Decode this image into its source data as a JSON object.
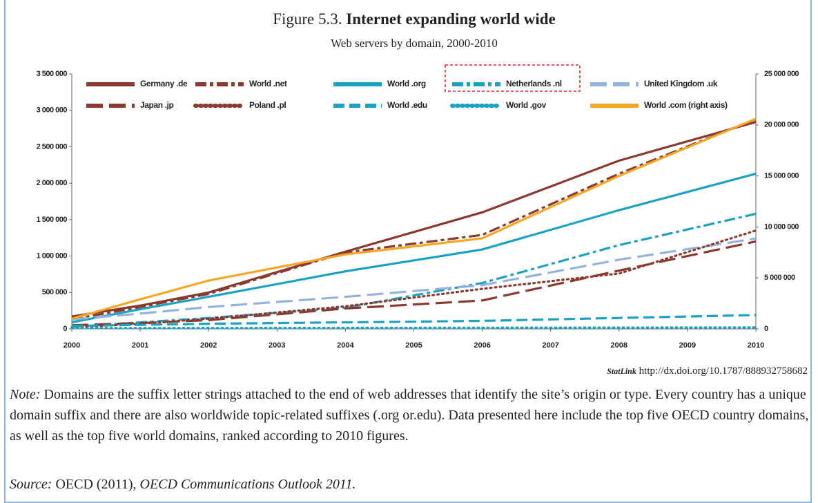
{
  "chart_data": {
    "type": "line",
    "title_prefix": "Figure 5.3.",
    "title": "Internet expanding world wide",
    "subtitle": "Web servers by domain, 2000-2010",
    "x": [
      2000,
      2001,
      2002,
      2004,
      2006,
      2008,
      2010
    ],
    "xlim": [
      2000,
      2010
    ],
    "xticks": [
      2000,
      2001,
      2002,
      2003,
      2004,
      2005,
      2006,
      2007,
      2008,
      2009,
      2010
    ],
    "ylim": [
      0,
      3500000
    ],
    "yticks": [
      0,
      {
        "value": 500000,
        "label": "500 000"
      },
      {
        "value": 1000000,
        "label": "1 000 000"
      },
      {
        "value": 1500000,
        "label": "1 500 000"
      },
      {
        "value": 2000000,
        "label": "2 000 000"
      },
      {
        "value": 2500000,
        "label": "2 500 000"
      },
      {
        "value": 3000000,
        "label": "3 000 000"
      },
      {
        "value": 3500000,
        "label": "3 500 000"
      }
    ],
    "y2lim": [
      0,
      25000000
    ],
    "y2ticks": [
      0,
      {
        "value": 5000000,
        "label": "5 000 000"
      },
      {
        "value": 10000000,
        "label": "10 000 000"
      },
      {
        "value": 15000000,
        "label": "15 000 000"
      },
      {
        "value": 20000000,
        "label": "20 000 000"
      },
      {
        "value": 25000000,
        "label": "25 000 000"
      }
    ],
    "grid": false,
    "series": [
      {
        "name": "Germany .de",
        "color": "#8b3a2f",
        "dash": "solid",
        "values": [
          170000,
          320000,
          500000,
          1060000,
          1600000,
          2310000,
          2840000
        ]
      },
      {
        "name": "World .net",
        "color": "#8b3a2f",
        "dash": "dashdot",
        "values": [
          130000,
          300000,
          480000,
          1050000,
          1290000,
          2130000,
          2880000
        ]
      },
      {
        "name": "World .org",
        "color": "#1aa3c0",
        "dash": "solid",
        "values": [
          90000,
          270000,
          440000,
          790000,
          1090000,
          1630000,
          2130000
        ]
      },
      {
        "name": "Netherlands .nl",
        "color": "#1aa3c0",
        "dash": "dashdot",
        "values": [
          30000,
          90000,
          150000,
          290000,
          630000,
          1150000,
          1580000
        ]
      },
      {
        "name": "United Kingdom .uk",
        "color": "#94b3dc",
        "dash": "longdash",
        "values": [
          130000,
          210000,
          300000,
          440000,
          600000,
          950000,
          1240000
        ]
      },
      {
        "name": "Japan .jp",
        "color": "#8b3a2f",
        "dash": "longdash",
        "values": [
          50000,
          80000,
          120000,
          280000,
          390000,
          800000,
          1200000
        ]
      },
      {
        "name": "Poland .pl",
        "color": "#8b3a2f",
        "dash": "dot",
        "values": [
          20000,
          70000,
          140000,
          310000,
          550000,
          760000,
          1350000
        ]
      },
      {
        "name": "World .edu",
        "color": "#1aa3c0",
        "dash": "dash",
        "values": [
          40000,
          55000,
          70000,
          90000,
          110000,
          150000,
          190000
        ]
      },
      {
        "name": "World .gov",
        "color": "#1aa3c0",
        "dash": "dot",
        "values": [
          10000,
          11000,
          12000,
          14000,
          16000,
          18000,
          20000
        ]
      },
      {
        "name": "World .com (right axis)",
        "color": "#f5a623",
        "dash": "solid",
        "axis": "y2",
        "values": [
          1000000,
          2900000,
          4740000,
          7300000,
          8880000,
          15000000,
          20600000
        ]
      }
    ],
    "statlink_label": "StatLink",
    "statlink_url": "http://dx.doi.org/10.1787/888932758682",
    "note_label": "Note:",
    "note": "Domains are the suffix letter strings attached to the end of web addresses that identify the site’s origin or type. Every country has a unique domain suffix and there are also worldwide topic-related suffixes (.org or.edu). Data presented here include the top five OECD country domains, as well as the top five world domains, ranked according to 2010 figures.",
    "source_label": "Source:",
    "source_text": "OECD (2011),",
    "source_title": "OECD Communications Outlook 2011."
  }
}
